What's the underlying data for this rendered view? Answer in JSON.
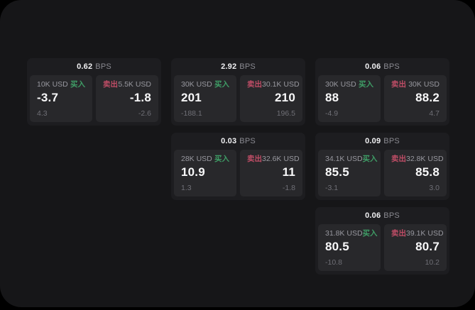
{
  "labels": {
    "buy": "买入",
    "sell": "卖出",
    "bps_unit": "BPS"
  },
  "colors": {
    "buy_green": "#3f9d66",
    "sell_red": "#bf4d66",
    "surface": "#161618",
    "card": "#1d1d20",
    "panel": "#28282b"
  },
  "cards": [
    {
      "bps": "0.62",
      "row": 1,
      "col": 1,
      "buy": {
        "amount": "10K USD",
        "value": "-3.7",
        "sub": "4.3"
      },
      "sell": {
        "amount": "5.5K USD",
        "value": "-1.8",
        "sub": "-2.6"
      }
    },
    {
      "bps": "2.92",
      "row": 1,
      "col": 2,
      "buy": {
        "amount": "30K USD",
        "value": "201",
        "sub": "-188.1"
      },
      "sell": {
        "amount": "30.1K USD",
        "value": "210",
        "sub": "196.5"
      }
    },
    {
      "bps": "0.06",
      "row": 1,
      "col": 3,
      "buy": {
        "amount": "30K USD",
        "value": "88",
        "sub": "-4.9"
      },
      "sell": {
        "amount": "30K USD",
        "value": "88.2",
        "sub": "4.7"
      }
    },
    {
      "bps": "0.03",
      "row": 2,
      "col": 2,
      "buy": {
        "amount": "28K USD",
        "value": "10.9",
        "sub": "1.3"
      },
      "sell": {
        "amount": "32.6K USD",
        "value": "11",
        "sub": "-1.8"
      }
    },
    {
      "bps": "0.09",
      "row": 2,
      "col": 3,
      "buy": {
        "amount": "34.1K USD",
        "value": "85.5",
        "sub": "-3.1"
      },
      "sell": {
        "amount": "32.8K USD",
        "value": "85.8",
        "sub": "3.0"
      }
    },
    {
      "bps": "0.06",
      "row": 3,
      "col": 3,
      "buy": {
        "amount": "31.8K USD",
        "value": "80.5",
        "sub": "-10.8"
      },
      "sell": {
        "amount": "39.1K USD",
        "value": "80.7",
        "sub": "10.2"
      }
    }
  ]
}
